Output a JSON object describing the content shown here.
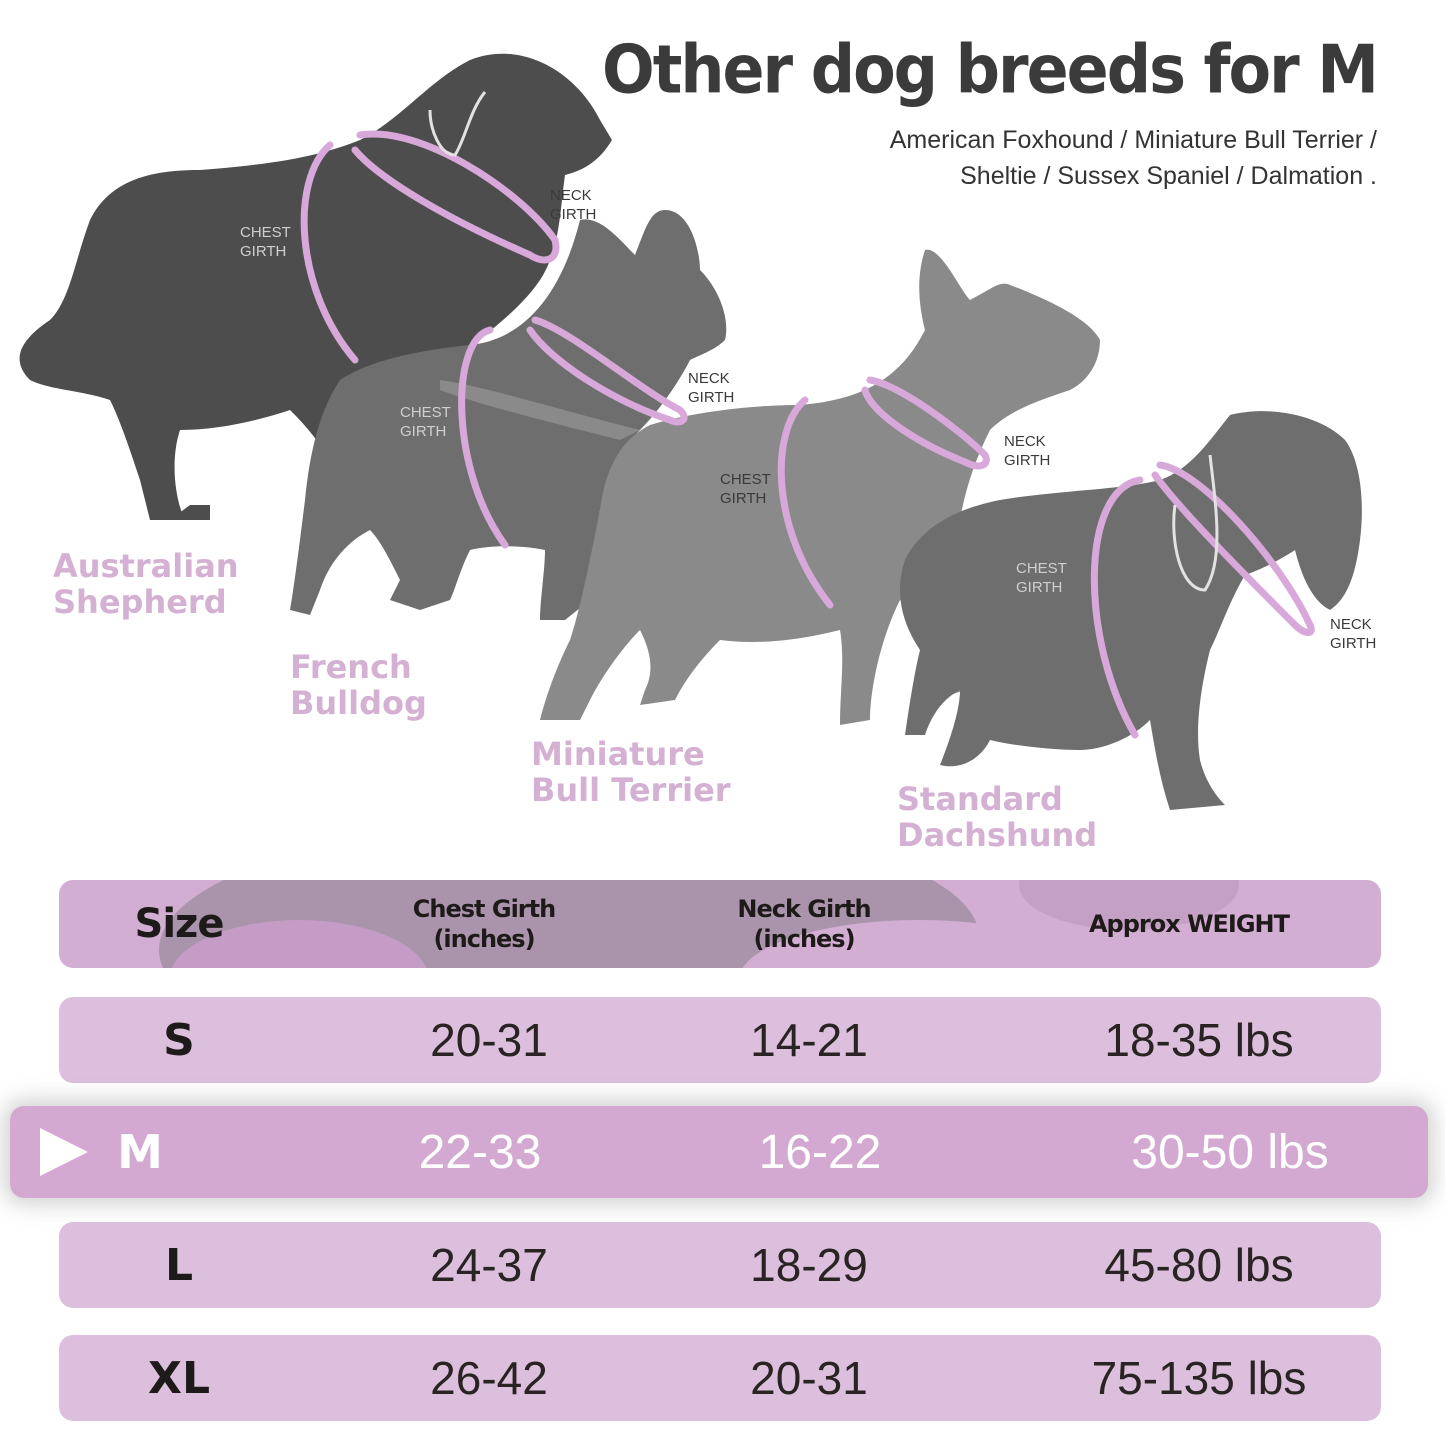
{
  "heading": {
    "title": "Other dog breeds for M",
    "subtitle_line1": "American Foxhound / Miniature Bull Terrier /",
    "subtitle_line2": "Sheltie / Sussex Spaniel / Dalmation ."
  },
  "girth_labels": {
    "chest_1": "CHEST",
    "chest_2": "GIRTH",
    "neck_1": "NECK",
    "neck_2": "GIRTH"
  },
  "breeds": [
    {
      "line1": "Australian",
      "line2": "Shepherd"
    },
    {
      "line1": "French",
      "line2": "Bulldog"
    },
    {
      "line1": "Miniature",
      "line2": "Bull Terrier"
    },
    {
      "line1": "Standard",
      "line2": "Dachshund"
    }
  ],
  "table": {
    "headers": {
      "size": "Size",
      "chest_1": "Chest Girth",
      "chest_2": "(inches)",
      "neck_1": "Neck Girth",
      "neck_2": "(inches)",
      "weight": "Approx WEIGHT"
    },
    "rows": [
      {
        "size": "S",
        "chest": "20-31",
        "neck": "14-21",
        "weight": "18-35 lbs"
      },
      {
        "size": "M",
        "chest": "22-33",
        "neck": "16-22",
        "weight": "30-50 lbs"
      },
      {
        "size": "L",
        "chest": "24-37",
        "neck": "18-29",
        "weight": "45-80 lbs"
      },
      {
        "size": "XL",
        "chest": "26-42",
        "neck": "20-31",
        "weight": "75-135 lbs"
      }
    ],
    "highlighted_size": "M"
  },
  "colors": {
    "accent": "#d4b0d2",
    "row_bg": "#dcbfdc",
    "row_active": "#d3a9d2",
    "silhouette_dark": "#4d4d4d",
    "silhouette_mid": "#6e6e6e",
    "silhouette_light": "#8a8a8a"
  },
  "icons": {
    "row_marker": "play-triangle-icon"
  }
}
